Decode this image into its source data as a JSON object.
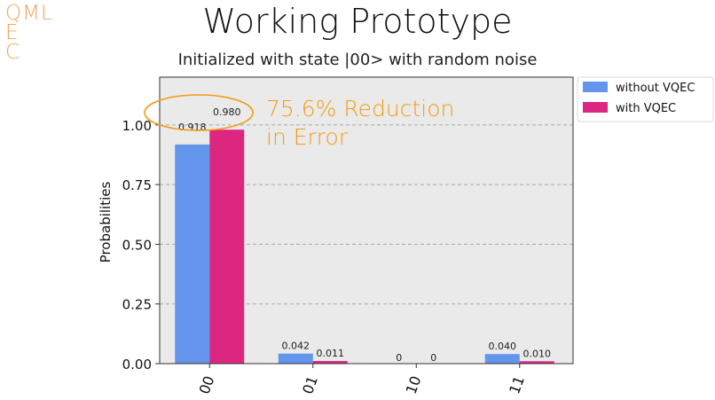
{
  "logo": {
    "line1": "QML",
    "line2": "E",
    "line3": "C"
  },
  "slide": {
    "title": "Working Prototype",
    "subtitle": "Initialized with state |00> with random noise"
  },
  "annotation": {
    "line1": "75.6% Reduction",
    "line2": "in Error",
    "color": "#f39c12"
  },
  "chart_data": {
    "type": "bar",
    "categories": [
      "00",
      "01",
      "10",
      "11"
    ],
    "series": [
      {
        "name": "without VQEC",
        "values": [
          0.918,
          0.042,
          0,
          0.04
        ],
        "labels": [
          "0.918",
          "0.042",
          "0",
          "0.040"
        ],
        "color": "#6495ed"
      },
      {
        "name": "with VQEC",
        "values": [
          0.98,
          0.011,
          0,
          0.01
        ],
        "labels": [
          "0.980",
          "0.011",
          "0",
          "0.010"
        ],
        "color": "#dc267f"
      }
    ],
    "ylabel": "Probabilities",
    "xlabel": "",
    "ylim": [
      0,
      1.2
    ],
    "yticks": [
      0.0,
      0.25,
      0.5,
      0.75,
      1.0
    ],
    "ytick_labels": [
      "0.00",
      "0.25",
      "0.50",
      "0.75",
      "1.00"
    ],
    "grid": true,
    "legend": "outside-top-right",
    "plot_background": "#eaeaea"
  }
}
